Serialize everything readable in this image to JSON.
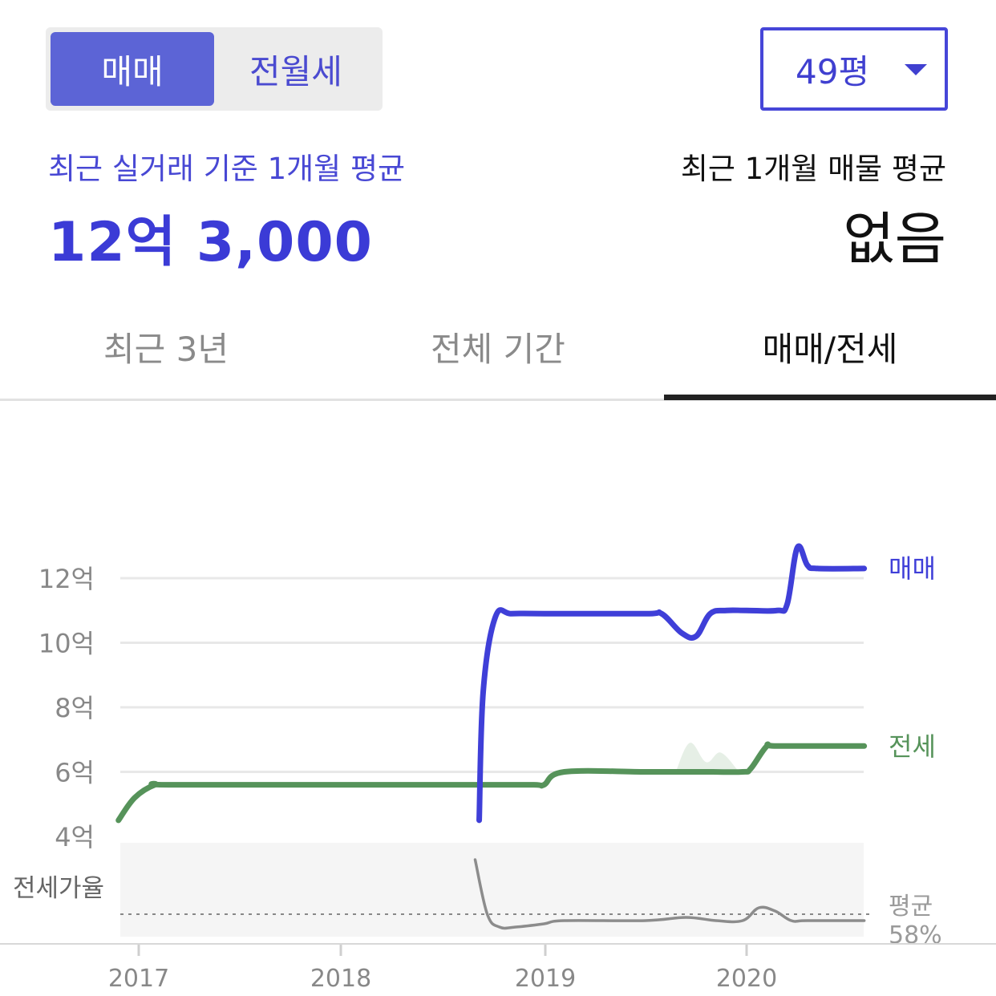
{
  "trade_toggle": {
    "options": [
      "매매",
      "전월세"
    ],
    "selected": "매매"
  },
  "size_select": {
    "value": "49평",
    "icon": "caret-down-icon"
  },
  "summary": {
    "recent_trade_label": "최근 실거래 기준 1개월 평균",
    "recent_trade_value": "12억 3,000",
    "listing_label": "최근 1개월 매물 평균",
    "listing_value": "없음"
  },
  "tabs": [
    {
      "label": "최근 3년",
      "active": false
    },
    {
      "label": "전체 기간",
      "active": false
    },
    {
      "label": "매매/전세",
      "active": true
    }
  ],
  "colors": {
    "accent": "#4040d8",
    "sale_line": "#3f3fd8",
    "jeonse_line": "#56935a",
    "ratio_line": "#8c8c8c",
    "ratio_band": "#f5f5f5",
    "grid": "#e8e8e8"
  },
  "chart_data": {
    "type": "line",
    "x_ticks": [
      "2017",
      "2018",
      "2019",
      "2020"
    ],
    "y_ticks": [
      "4억",
      "6억",
      "8억",
      "10억",
      "12억"
    ],
    "ylim": [
      4,
      13
    ],
    "series": [
      {
        "name": "매매",
        "x": [
          2018.68,
          2018.7,
          2018.76,
          2018.84,
          2019.0,
          2019.5,
          2019.58,
          2019.68,
          2019.75,
          2019.82,
          2019.9,
          2020.0,
          2020.15,
          2020.2,
          2020.25,
          2020.3,
          2020.35,
          2020.58
        ],
        "y": [
          4.5,
          8.5,
          10.8,
          10.9,
          10.9,
          10.9,
          10.9,
          10.3,
          10.2,
          10.9,
          11.0,
          11.0,
          11.0,
          11.2,
          12.95,
          12.4,
          12.3,
          12.3
        ]
      },
      {
        "name": "전세",
        "x": [
          2016.9,
          2016.98,
          2017.08,
          2017.15,
          2018.0,
          2018.68,
          2018.95,
          2019.0,
          2019.1,
          2019.5,
          2019.8,
          2019.98,
          2020.02,
          2020.1,
          2020.15,
          2020.58
        ],
        "y": [
          4.5,
          5.2,
          5.6,
          5.6,
          5.6,
          5.6,
          5.6,
          5.6,
          6.0,
          6.0,
          6.0,
          6.0,
          6.1,
          6.8,
          6.8,
          6.8
        ]
      },
      {
        "name": "전세가율",
        "x": [
          2018.66,
          2018.72,
          2018.78,
          2018.86,
          2019.0,
          2019.1,
          2019.5,
          2019.7,
          2019.85,
          2019.98,
          2020.06,
          2020.14,
          2020.22,
          2020.3,
          2020.58
        ],
        "y": [
          75,
          58,
          54,
          54,
          55,
          56,
          56,
          57,
          56,
          56,
          60,
          59,
          56,
          56,
          56
        ]
      }
    ],
    "ratio_label": "전세가율",
    "average_label": "평균",
    "average_value": "58%"
  }
}
